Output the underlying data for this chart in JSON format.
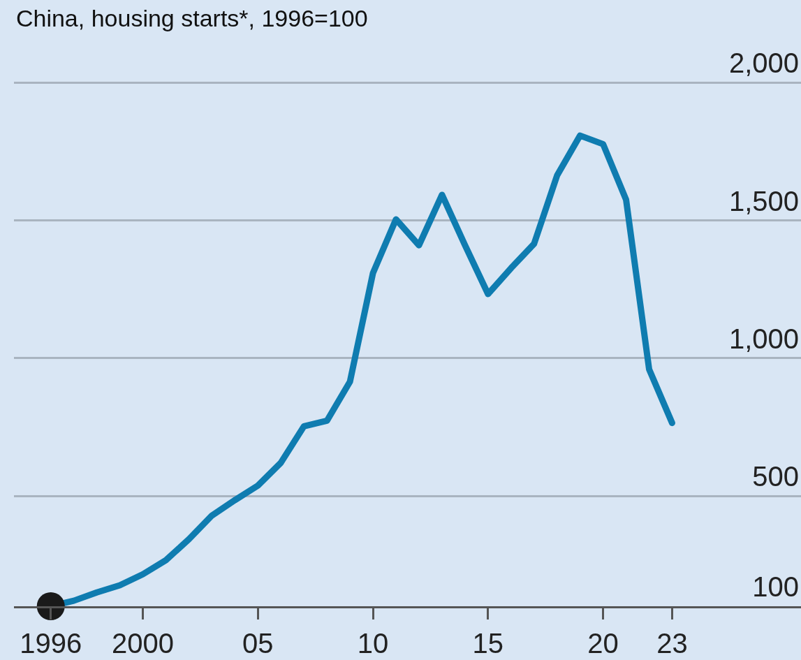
{
  "chart_data": {
    "type": "line",
    "title": "China, housing starts*, 1996=100",
    "x": [
      1996,
      1997,
      1998,
      1999,
      2000,
      2001,
      2002,
      2003,
      2004,
      2005,
      2006,
      2007,
      2008,
      2009,
      2010,
      2011,
      2012,
      2013,
      2014,
      2015,
      2016,
      2017,
      2018,
      2019,
      2020,
      2021,
      2022,
      2023
    ],
    "series": [
      {
        "color": "#0f7cb0",
        "marker": "none",
        "values": [
          100,
          120,
          150,
          176,
          216,
          267,
          343,
          429,
          485,
          538,
          621,
          753,
          773,
          915,
          1309,
          1504,
          1410,
          1593,
          1410,
          1233,
          1327,
          1415,
          1663,
          1808,
          1777,
          1575,
          960,
          765
        ]
      },
      {
        "type": "scatter",
        "color": "#1a1a1a",
        "marker": "circle",
        "x": [
          1996
        ],
        "values": [
          100
        ]
      }
    ],
    "xlim": [
      1994.4,
      2028.6
    ],
    "xticks": [
      1996,
      2000,
      {
        "value": 2005,
        "label": "05"
      },
      {
        "value": 2010,
        "label": "10"
      },
      {
        "value": 2015,
        "label": "15"
      },
      {
        "value": 2020,
        "label": "20"
      },
      {
        "value": 2023,
        "label": "23"
      }
    ],
    "ylim": [
      100,
      2300
    ],
    "yticks": [
      100,
      500,
      {
        "value": 1000,
        "label": "1,000"
      },
      {
        "value": 1500,
        "label": "1,500"
      },
      {
        "value": 2000,
        "label": "2,000"
      }
    ],
    "grid": "y",
    "line_style": "solid"
  }
}
